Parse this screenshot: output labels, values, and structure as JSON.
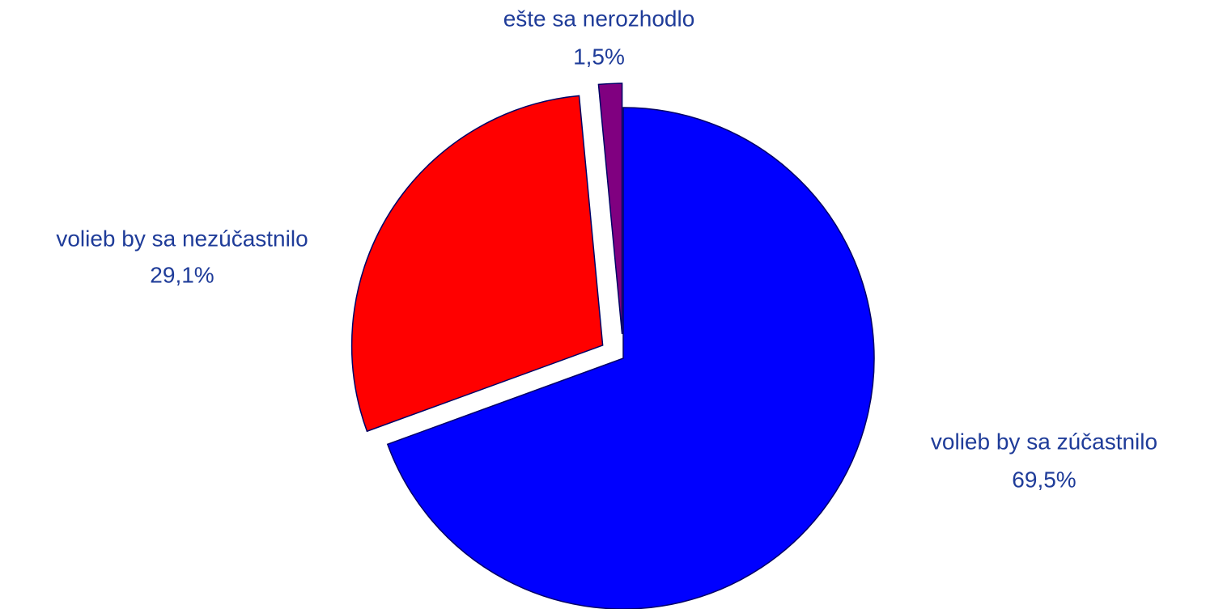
{
  "chart_data": {
    "type": "pie",
    "categories": [
      "volieb by sa zúčastnilo",
      "volieb by sa nezúčastnilo",
      "ešte sa nerozhodlo"
    ],
    "values": [
      69.5,
      29.1,
      1.5
    ],
    "value_labels": [
      "69,5%",
      "29,1%",
      "1,5%"
    ],
    "colors": [
      "#0000ff",
      "#ff0000",
      "#800080"
    ]
  }
}
